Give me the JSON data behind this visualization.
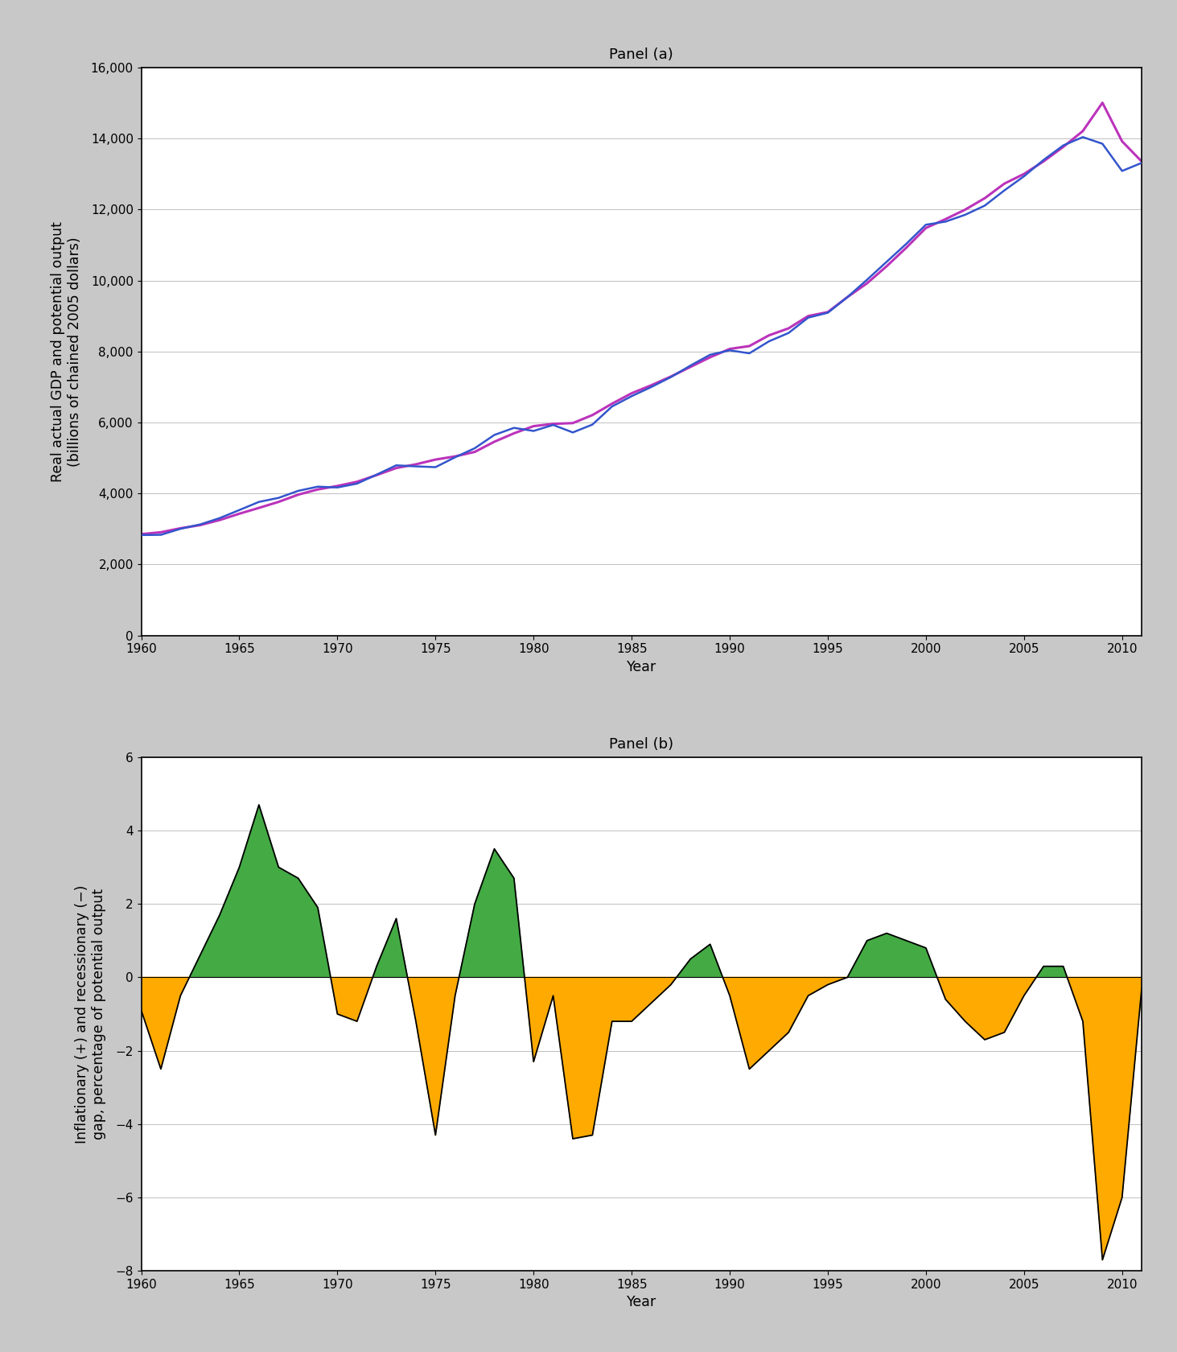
{
  "panel_a_title": "Panel (a)",
  "panel_b_title": "Panel (b)",
  "panel_a_ylabel": "Real actual GDP and potential output\n(billions of chained 2005 dollars)",
  "panel_a_xlabel": "Year",
  "panel_b_ylabel": "Inflationary (+) and recessionary (−)\ngap, percentage of potential output",
  "panel_b_xlabel": "Year",
  "panel_a_ylim": [
    0,
    16000
  ],
  "panel_a_yticks": [
    0,
    2000,
    4000,
    6000,
    8000,
    10000,
    12000,
    14000,
    16000
  ],
  "panel_b_ylim": [
    -8,
    6
  ],
  "panel_b_yticks": [
    -8,
    -6,
    -4,
    -2,
    0,
    2,
    4,
    6
  ],
  "xlim": [
    1960,
    2011
  ],
  "xticks": [
    1960,
    1965,
    1970,
    1975,
    1980,
    1985,
    1990,
    1995,
    2000,
    2005,
    2010
  ],
  "actual_gdp_color": "#3355cc",
  "potential_gdp_color": "#bb33bb",
  "gap_positive_color": "#44aa44",
  "gap_negative_color": "#ffaa00",
  "gap_line_color": "#000000",
  "background_color": "#ffffff",
  "figure_background": "#c8c8c8",
  "actual_gdp": {
    "years": [
      1960,
      1961,
      1962,
      1963,
      1964,
      1965,
      1966,
      1967,
      1968,
      1969,
      1970,
      1971,
      1972,
      1973,
      1974,
      1975,
      1976,
      1977,
      1978,
      1979,
      1980,
      1981,
      1982,
      1983,
      1984,
      1985,
      1986,
      1987,
      1988,
      1989,
      1990,
      1991,
      1992,
      1993,
      1994,
      1995,
      1996,
      1997,
      1998,
      1999,
      2000,
      2001,
      2002,
      2003,
      2004,
      2005,
      2006,
      2007,
      2008,
      2009,
      2010,
      2011
    ],
    "values": [
      2829,
      2835,
      3005,
      3127,
      3307,
      3533,
      3763,
      3876,
      4074,
      4192,
      4170,
      4278,
      4532,
      4793,
      4764,
      4742,
      5020,
      5275,
      5649,
      5849,
      5762,
      5932,
      5720,
      5942,
      6452,
      6742,
      7000,
      7280,
      7605,
      7909,
      8033,
      7950,
      8287,
      8523,
      8955,
      9093,
      9534,
      10023,
      10529,
      11035,
      11573,
      11660,
      11853,
      12111,
      12540,
      12938,
      13399,
      13807,
      14042,
      13854,
      13088,
      13315
    ]
  },
  "gap": {
    "years": [
      1960,
      1961,
      1962,
      1963,
      1964,
      1965,
      1966,
      1967,
      1968,
      1969,
      1970,
      1971,
      1972,
      1973,
      1974,
      1975,
      1976,
      1977,
      1978,
      1979,
      1980,
      1981,
      1982,
      1983,
      1984,
      1985,
      1986,
      1987,
      1988,
      1989,
      1990,
      1991,
      1992,
      1993,
      1994,
      1995,
      1996,
      1997,
      1998,
      1999,
      2000,
      2001,
      2002,
      2003,
      2004,
      2005,
      2006,
      2007,
      2008,
      2009,
      2010,
      2011
    ],
    "values": [
      -0.9,
      -2.5,
      -0.5,
      0.6,
      1.7,
      3.0,
      4.7,
      3.0,
      2.7,
      1.9,
      -1.0,
      -1.2,
      0.3,
      1.6,
      -1.2,
      -4.3,
      -0.5,
      2.0,
      3.5,
      2.7,
      -2.3,
      -0.5,
      -4.4,
      -4.3,
      -1.2,
      -1.2,
      -0.7,
      -0.2,
      0.5,
      0.9,
      -0.5,
      -2.5,
      -2.0,
      -1.5,
      -0.5,
      -0.2,
      0.0,
      1.0,
      1.2,
      1.0,
      0.8,
      -0.6,
      -1.2,
      -1.7,
      -1.5,
      -0.5,
      0.3,
      0.3,
      -1.2,
      -7.7,
      -6.0,
      -0.3
    ]
  }
}
